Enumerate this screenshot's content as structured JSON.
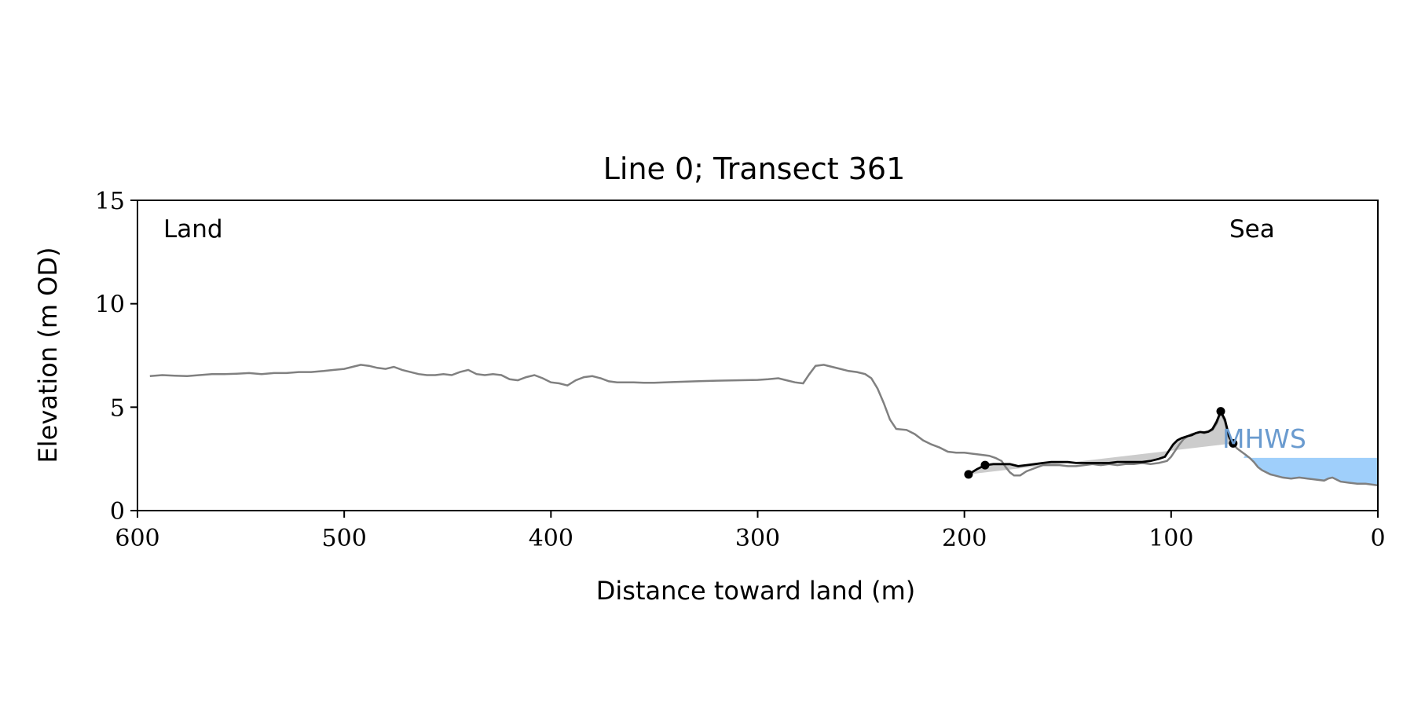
{
  "chart_data": {
    "type": "line",
    "title": "Line 0; Transect 361",
    "xlabel": "Distance toward land (m)",
    "ylabel": "Elevation (m OD)",
    "xlim": [
      600,
      0
    ],
    "ylim": [
      0,
      15
    ],
    "x_reversed": true,
    "grid": false,
    "xticks": [
      600,
      500,
      400,
      300,
      200,
      100,
      0
    ],
    "yticks": [
      0,
      5,
      10,
      15
    ],
    "annotations": {
      "land": "Land",
      "sea": "Sea",
      "mhws": "MHWS"
    },
    "colors": {
      "profile": "#808080",
      "segment": "#000000",
      "fill": "#cccccc",
      "water": "#9fcffb",
      "mhws_text": "#6a9bcf"
    },
    "mhws": {
      "level": 2.55,
      "x_start": 65,
      "x_end": 0
    },
    "profile": {
      "name": "",
      "points": [
        [
          594,
          6.5
        ],
        [
          588,
          6.55
        ],
        [
          582,
          6.52
        ],
        [
          576,
          6.5
        ],
        [
          570,
          6.55
        ],
        [
          564,
          6.6
        ],
        [
          558,
          6.6
        ],
        [
          552,
          6.62
        ],
        [
          546,
          6.65
        ],
        [
          540,
          6.6
        ],
        [
          534,
          6.65
        ],
        [
          528,
          6.65
        ],
        [
          522,
          6.7
        ],
        [
          516,
          6.7
        ],
        [
          510,
          6.75
        ],
        [
          505,
          6.8
        ],
        [
          500,
          6.85
        ],
        [
          496,
          6.95
        ],
        [
          492,
          7.05
        ],
        [
          488,
          7.0
        ],
        [
          484,
          6.9
        ],
        [
          480,
          6.85
        ],
        [
          476,
          6.95
        ],
        [
          472,
          6.8
        ],
        [
          468,
          6.7
        ],
        [
          464,
          6.6
        ],
        [
          460,
          6.55
        ],
        [
          456,
          6.55
        ],
        [
          452,
          6.6
        ],
        [
          448,
          6.55
        ],
        [
          444,
          6.7
        ],
        [
          440,
          6.8
        ],
        [
          436,
          6.6
        ],
        [
          432,
          6.55
        ],
        [
          428,
          6.6
        ],
        [
          424,
          6.55
        ],
        [
          420,
          6.35
        ],
        [
          416,
          6.3
        ],
        [
          412,
          6.45
        ],
        [
          408,
          6.55
        ],
        [
          404,
          6.4
        ],
        [
          400,
          6.2
        ],
        [
          396,
          6.15
        ],
        [
          392,
          6.05
        ],
        [
          388,
          6.3
        ],
        [
          384,
          6.45
        ],
        [
          380,
          6.5
        ],
        [
          376,
          6.4
        ],
        [
          372,
          6.25
        ],
        [
          368,
          6.2
        ],
        [
          364,
          6.2
        ],
        [
          360,
          6.2
        ],
        [
          355,
          6.18
        ],
        [
          350,
          6.18
        ],
        [
          345,
          6.2
        ],
        [
          340,
          6.22
        ],
        [
          330,
          6.25
        ],
        [
          320,
          6.28
        ],
        [
          310,
          6.3
        ],
        [
          300,
          6.32
        ],
        [
          295,
          6.35
        ],
        [
          290,
          6.4
        ],
        [
          286,
          6.3
        ],
        [
          282,
          6.2
        ],
        [
          278,
          6.15
        ],
        [
          275,
          6.6
        ],
        [
          272,
          7.0
        ],
        [
          268,
          7.05
        ],
        [
          264,
          6.95
        ],
        [
          260,
          6.85
        ],
        [
          256,
          6.75
        ],
        [
          252,
          6.7
        ],
        [
          248,
          6.6
        ],
        [
          245,
          6.4
        ],
        [
          242,
          5.9
        ],
        [
          239,
          5.2
        ],
        [
          236,
          4.4
        ],
        [
          233,
          3.95
        ],
        [
          228,
          3.9
        ],
        [
          224,
          3.7
        ],
        [
          220,
          3.4
        ],
        [
          216,
          3.2
        ],
        [
          212,
          3.05
        ],
        [
          208,
          2.85
        ],
        [
          204,
          2.8
        ],
        [
          200,
          2.8
        ],
        [
          196,
          2.75
        ],
        [
          192,
          2.7
        ],
        [
          188,
          2.65
        ],
        [
          185,
          2.55
        ],
        [
          182,
          2.4
        ],
        [
          180,
          2.1
        ],
        [
          178,
          1.85
        ],
        [
          176,
          1.7
        ],
        [
          173,
          1.7
        ],
        [
          170,
          1.9
        ],
        [
          166,
          2.05
        ],
        [
          162,
          2.2
        ],
        [
          158,
          2.2
        ],
        [
          154,
          2.2
        ],
        [
          150,
          2.15
        ],
        [
          146,
          2.15
        ],
        [
          142,
          2.2
        ],
        [
          138,
          2.25
        ],
        [
          134,
          2.2
        ],
        [
          130,
          2.25
        ],
        [
          126,
          2.2
        ],
        [
          122,
          2.25
        ],
        [
          118,
          2.25
        ],
        [
          114,
          2.3
        ],
        [
          110,
          2.25
        ],
        [
          106,
          2.3
        ],
        [
          102,
          2.4
        ],
        [
          100,
          2.6
        ],
        [
          98,
          2.9
        ],
        [
          96,
          3.2
        ],
        [
          94,
          3.45
        ],
        [
          92,
          3.6
        ],
        [
          90,
          3.7
        ],
        [
          88,
          3.75
        ],
        [
          86,
          3.8
        ],
        [
          84,
          3.75
        ],
        [
          82,
          3.8
        ],
        [
          80,
          3.9
        ],
        [
          78,
          4.2
        ],
        [
          76,
          4.75
        ],
        [
          74,
          4.3
        ],
        [
          72,
          3.5
        ],
        [
          70,
          3.2
        ],
        [
          68,
          3.0
        ],
        [
          66,
          2.85
        ],
        [
          64,
          2.7
        ],
        [
          62,
          2.55
        ],
        [
          60,
          2.35
        ],
        [
          58,
          2.1
        ],
        [
          56,
          1.95
        ],
        [
          54,
          1.85
        ],
        [
          52,
          1.75
        ],
        [
          50,
          1.7
        ],
        [
          46,
          1.6
        ],
        [
          42,
          1.55
        ],
        [
          38,
          1.6
        ],
        [
          34,
          1.55
        ],
        [
          30,
          1.5
        ],
        [
          26,
          1.45
        ],
        [
          24,
          1.55
        ],
        [
          22,
          1.6
        ],
        [
          20,
          1.5
        ],
        [
          18,
          1.4
        ],
        [
          14,
          1.35
        ],
        [
          10,
          1.3
        ],
        [
          6,
          1.3
        ],
        [
          2,
          1.25
        ],
        [
          0,
          1.22
        ]
      ]
    },
    "segment": {
      "name": "",
      "points": [
        [
          198,
          1.75
        ],
        [
          194,
          2.0
        ],
        [
          190,
          2.2
        ],
        [
          186,
          2.25
        ],
        [
          182,
          2.25
        ],
        [
          178,
          2.25
        ],
        [
          174,
          2.15
        ],
        [
          170,
          2.2
        ],
        [
          166,
          2.25
        ],
        [
          162,
          2.3
        ],
        [
          158,
          2.35
        ],
        [
          154,
          2.35
        ],
        [
          150,
          2.35
        ],
        [
          146,
          2.3
        ],
        [
          142,
          2.3
        ],
        [
          138,
          2.3
        ],
        [
          134,
          2.3
        ],
        [
          130,
          2.3
        ],
        [
          126,
          2.35
        ],
        [
          122,
          2.35
        ],
        [
          118,
          2.35
        ],
        [
          114,
          2.35
        ],
        [
          110,
          2.4
        ],
        [
          106,
          2.5
        ],
        [
          103,
          2.6
        ],
        [
          101,
          2.9
        ],
        [
          99,
          3.2
        ],
        [
          97,
          3.4
        ],
        [
          95,
          3.5
        ],
        [
          92,
          3.6
        ],
        [
          90,
          3.65
        ],
        [
          88,
          3.75
        ],
        [
          86,
          3.8
        ],
        [
          84,
          3.78
        ],
        [
          82,
          3.82
        ],
        [
          80,
          3.95
        ],
        [
          78,
          4.3
        ],
        [
          76,
          4.8
        ],
        [
          74,
          4.4
        ],
        [
          72,
          3.6
        ],
        [
          70,
          3.25
        ]
      ],
      "markers": [
        [
          198,
          1.75
        ],
        [
          190,
          2.2
        ],
        [
          76,
          4.8
        ],
        [
          70,
          3.25
        ]
      ]
    }
  }
}
